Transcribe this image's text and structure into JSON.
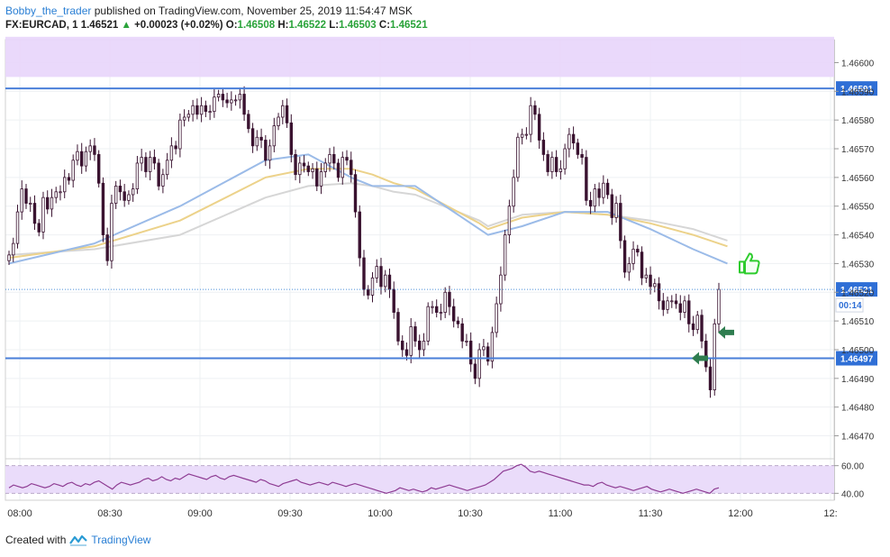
{
  "header": {
    "author": "Bobby_the_trader",
    "published_text": "published on TradingView.com, November 25, 2019 11:54:47 MSK",
    "symbol_label": "FX:EURCAD, 1",
    "last": "1.46521",
    "change_arrow": "▲",
    "change": "+0.00023 (+0.02%)",
    "open_label": "O:",
    "open": "1.46508",
    "high_label": "H:",
    "high": "1.46522",
    "low_label": "L:",
    "low": "1.46503",
    "close_label": "C:",
    "close": "1.46521"
  },
  "footer": {
    "created_with": "Created with",
    "brand": "TradingView",
    "logo_icon": "tradingview-logo-icon"
  },
  "colors": {
    "resistance_zone": "#e8d5fb",
    "level_line": "#4a7fd9",
    "price_tag_bg": "#2f6fd6",
    "candle": "#3a1330",
    "ma_blue": "#9bbbe8",
    "ma_gold": "#ecd28a",
    "ma_gray": "#d6d6d6",
    "rsi_line": "#8e3c93",
    "rsi_band": "#eadcfa",
    "thumb": "#2ecc2e",
    "arrow": "#2e7d4f"
  },
  "chart_data": {
    "type": "candlestick",
    "symbol": "FX:EURCAD",
    "interval": "1",
    "ylim": [
      1.46462,
      1.46608
    ],
    "y_ticks": [
      "1.46600",
      "1.46590",
      "1.46580",
      "1.46570",
      "1.46560",
      "1.46550",
      "1.46540",
      "1.46530",
      "1.46520",
      "1.46510",
      "1.46500",
      "1.46490",
      "1.46480",
      "1.46470"
    ],
    "x_ticks": [
      "08:00",
      "08:30",
      "09:00",
      "09:30",
      "10:00",
      "10:30",
      "11:00",
      "11:30",
      "12:00",
      "12:"
    ],
    "resistance_zone": [
      1.46595,
      1.46609
    ],
    "levels": [
      {
        "value": 1.46591,
        "label": "1.46591"
      },
      {
        "value": 1.46497,
        "label": "1.46497"
      }
    ],
    "current_price": {
      "value": 1.46521,
      "label": "1.46521",
      "countdown": "00:14"
    },
    "closes": [
      1.46533,
      1.46537,
      1.46548,
      1.46556,
      1.46551,
      1.46551,
      1.46544,
      1.46541,
      1.46553,
      1.46549,
      1.46553,
      1.46555,
      1.46555,
      1.4656,
      1.46559,
      1.46566,
      1.46569,
      1.46564,
      1.46569,
      1.46571,
      1.46568,
      1.46558,
      1.4654,
      1.46531,
      1.46551,
      1.46557,
      1.46555,
      1.46552,
      1.46554,
      1.46556,
      1.46565,
      1.46567,
      1.46562,
      1.46567,
      1.46565,
      1.46557,
      1.46561,
      1.46566,
      1.46571,
      1.4657,
      1.4658,
      1.46581,
      1.46582,
      1.46585,
      1.46582,
      1.46585,
      1.46583,
      1.46583,
      1.46588,
      1.46589,
      1.46587,
      1.46586,
      1.46587,
      1.46587,
      1.46589,
      1.46582,
      1.46577,
      1.46571,
      1.46574,
      1.46573,
      1.46566,
      1.46571,
      1.46578,
      1.46581,
      1.46585,
      1.46579,
      1.46568,
      1.46561,
      1.46565,
      1.46564,
      1.46562,
      1.46563,
      1.46557,
      1.46562,
      1.46565,
      1.46568,
      1.46565,
      1.4656,
      1.46567,
      1.46566,
      1.46561,
      1.46548,
      1.46532,
      1.46521,
      1.46519,
      1.46525,
      1.46529,
      1.46522,
      1.46526,
      1.46521,
      1.46513,
      1.46503,
      1.465,
      1.46498,
      1.46508,
      1.46503,
      1.465,
      1.46503,
      1.46515,
      1.46515,
      1.46513,
      1.46513,
      1.4652,
      1.46515,
      1.4651,
      1.46509,
      1.46503,
      1.46503,
      1.46495,
      1.4649,
      1.465,
      1.46501,
      1.46496,
      1.46506,
      1.46516,
      1.46526,
      1.4654,
      1.4655,
      1.4656,
      1.46574,
      1.46575,
      1.46575,
      1.46585,
      1.46582,
      1.46573,
      1.46568,
      1.46562,
      1.46567,
      1.46562,
      1.46563,
      1.4657,
      1.46575,
      1.46572,
      1.46568,
      1.46567,
      1.46552,
      1.4655,
      1.46556,
      1.46553,
      1.46558,
      1.46554,
      1.46546,
      1.46551,
      1.46538,
      1.46527,
      1.4653,
      1.46535,
      1.46534,
      1.46525,
      1.46526,
      1.46522,
      1.46523,
      1.46517,
      1.46514,
      1.46517,
      1.46517,
      1.46516,
      1.46513,
      1.46517,
      1.46509,
      1.46507,
      1.46512,
      1.46503,
      1.46494,
      1.46486,
      1.46509,
      1.46521
    ],
    "series": [
      {
        "name": "MA blue",
        "x_index": [
          0,
          20,
          40,
          60,
          70,
          80,
          85,
          90,
          95,
          110,
          112,
          120,
          130,
          140,
          150,
          160,
          168
        ],
        "values": [
          1.4653,
          1.46537,
          1.4655,
          1.46566,
          1.46568,
          1.4656,
          1.46557,
          1.46557,
          1.46557,
          1.46542,
          1.4654,
          1.46543,
          1.46548,
          1.46548,
          1.46542,
          1.46535,
          1.4653
        ]
      },
      {
        "name": "MA gold",
        "x_index": [
          0,
          20,
          40,
          60,
          70,
          80,
          85,
          90,
          95,
          110,
          112,
          120,
          130,
          140,
          150,
          160,
          168
        ],
        "values": [
          1.46532,
          1.46536,
          1.46545,
          1.4656,
          1.46563,
          1.46563,
          1.46561,
          1.46558,
          1.46556,
          1.46544,
          1.46542,
          1.46546,
          1.46548,
          1.46547,
          1.46544,
          1.4654,
          1.46536
        ]
      },
      {
        "name": "MA gray",
        "x_index": [
          0,
          20,
          40,
          60,
          70,
          80,
          85,
          90,
          95,
          110,
          112,
          120,
          130,
          140,
          150,
          160,
          168
        ],
        "values": [
          1.46533,
          1.46535,
          1.4654,
          1.46553,
          1.46557,
          1.46558,
          1.46557,
          1.46555,
          1.46554,
          1.46545,
          1.46543,
          1.46547,
          1.46548,
          1.46547,
          1.46545,
          1.46542,
          1.46538
        ]
      }
    ],
    "markers": [
      {
        "kind": "thumbs-up",
        "price": 1.4653
      },
      {
        "kind": "arrow-left",
        "price": 1.46506
      },
      {
        "kind": "arrow-left",
        "price": 1.46497
      }
    ],
    "rsi": {
      "ylim": [
        35,
        65
      ],
      "ticks": [
        "60.00",
        "40.00"
      ],
      "band": [
        40,
        60
      ],
      "values": [
        44,
        46,
        45,
        44,
        45,
        47,
        46,
        45,
        44,
        45,
        47,
        46,
        45,
        47,
        48,
        46,
        45,
        47,
        46,
        48,
        49,
        47,
        45,
        43,
        46,
        48,
        47,
        46,
        47,
        48,
        50,
        51,
        49,
        50,
        52,
        50,
        49,
        51,
        50,
        52,
        54,
        53,
        52,
        51,
        50,
        52,
        53,
        51,
        50,
        52,
        53,
        52,
        51,
        50,
        49,
        48,
        50,
        49,
        47,
        46,
        45,
        47,
        48,
        49,
        50,
        48,
        47,
        46,
        47,
        48,
        47,
        46,
        48,
        47,
        46,
        45,
        46,
        47,
        46,
        45,
        44,
        43,
        42,
        41,
        40,
        41,
        42,
        44,
        43,
        42,
        43,
        42,
        41,
        42,
        44,
        43,
        44,
        45,
        46,
        45,
        44,
        43,
        42,
        43,
        44,
        45,
        46,
        48,
        50,
        53,
        56,
        57,
        58,
        60,
        61,
        59,
        56,
        55,
        56,
        55,
        54,
        53,
        52,
        51,
        50,
        49,
        48,
        47,
        46,
        46,
        45,
        47,
        48,
        46,
        45,
        44,
        45,
        44,
        43,
        42,
        43,
        44,
        45,
        43,
        42,
        41,
        42,
        43,
        42,
        41,
        40,
        41,
        42,
        43,
        42,
        41,
        40,
        43,
        44
      ]
    }
  }
}
